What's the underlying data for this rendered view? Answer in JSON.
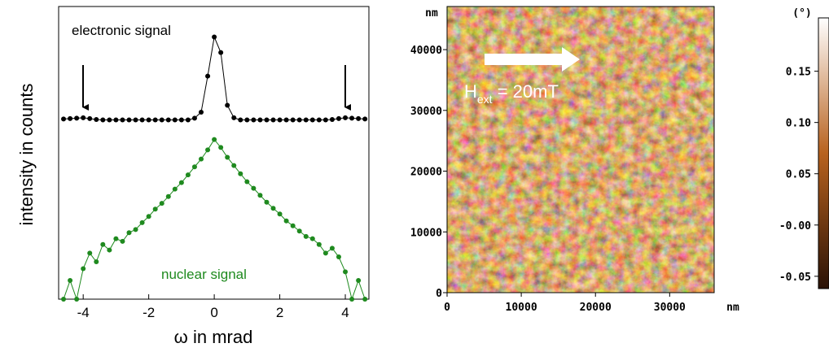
{
  "chart_data": [
    {
      "type": "line",
      "yscale": "log",
      "x_label": "ω in mrad",
      "y_label": "intensity in counts",
      "annotations": [
        "electronic signal",
        "nuclear signal"
      ],
      "x": [
        -4.6,
        -4.4,
        -4.2,
        -4.0,
        -3.8,
        -3.6,
        -3.4,
        -3.2,
        -3.0,
        -2.8,
        -2.6,
        -2.4,
        -2.2,
        -2.0,
        -1.8,
        -1.6,
        -1.4,
        -1.2,
        -1.0,
        -0.8,
        -0.6,
        -0.4,
        -0.2,
        0,
        0.2,
        0.4,
        0.6,
        0.8,
        1.0,
        1.2,
        1.4,
        1.6,
        1.8,
        2.0,
        2.2,
        2.4,
        2.6,
        2.8,
        3.0,
        3.2,
        3.4,
        3.6,
        3.8,
        4.0,
        4.2,
        4.4,
        4.6
      ],
      "series": [
        {
          "color": "#000000",
          "values": [
            40000,
            41000,
            42000,
            43000,
            41000,
            39000,
            38000,
            38000,
            38000,
            38000,
            38000,
            38000,
            38000,
            38000,
            38000,
            38000,
            38000,
            38000,
            38000,
            38000,
            42000,
            60000,
            500000,
            5000000,
            2000000,
            90000,
            43000,
            38000,
            38000,
            38000,
            38000,
            38000,
            38000,
            38000,
            38000,
            38000,
            38000,
            38000,
            38000,
            38000,
            38000,
            39000,
            41000,
            43000,
            42000,
            41000,
            40000
          ]
        },
        {
          "color": "#1f8a1f",
          "values": [
            1,
            3,
            1,
            6,
            15,
            9,
            25,
            18,
            35,
            30,
            50,
            60,
            90,
            130,
            200,
            280,
            420,
            650,
            950,
            1500,
            2400,
            3800,
            6500,
            12000,
            7500,
            4200,
            2600,
            1600,
            1000,
            680,
            450,
            300,
            210,
            150,
            100,
            75,
            55,
            40,
            35,
            25,
            15,
            20,
            12,
            5,
            1,
            3,
            1
          ]
        }
      ],
      "xlim": [
        -4.75,
        4.72
      ],
      "xticks": [
        -4,
        -2,
        0,
        2,
        4
      ],
      "ylim": [
        1,
        30000000
      ]
    },
    {
      "type": "image",
      "x_label": "nm",
      "y_label": "nm",
      "annotation": {
        "text": "H",
        "subscript": "ext",
        "suffix": " = 20mT"
      },
      "xlim": [
        0,
        36000
      ],
      "xticks": [
        0,
        10000,
        20000,
        30000
      ],
      "ylim": [
        0,
        47100
      ],
      "yticks": [
        0,
        10000,
        20000,
        30000,
        40000
      ],
      "colorbar": {
        "label": "(°)",
        "colormap": [
          "#2a1206",
          "#b8621e",
          "#ffffff"
        ],
        "clim": [
          -0.062,
          0.202
        ],
        "ticks": [
          {
            "value": -0.05,
            "label": "-0.05"
          },
          {
            "value": 0,
            "label": "-0.00"
          },
          0.05,
          {
            "value": 0.1,
            "label": "0.10"
          },
          0.15
        ]
      }
    }
  ]
}
